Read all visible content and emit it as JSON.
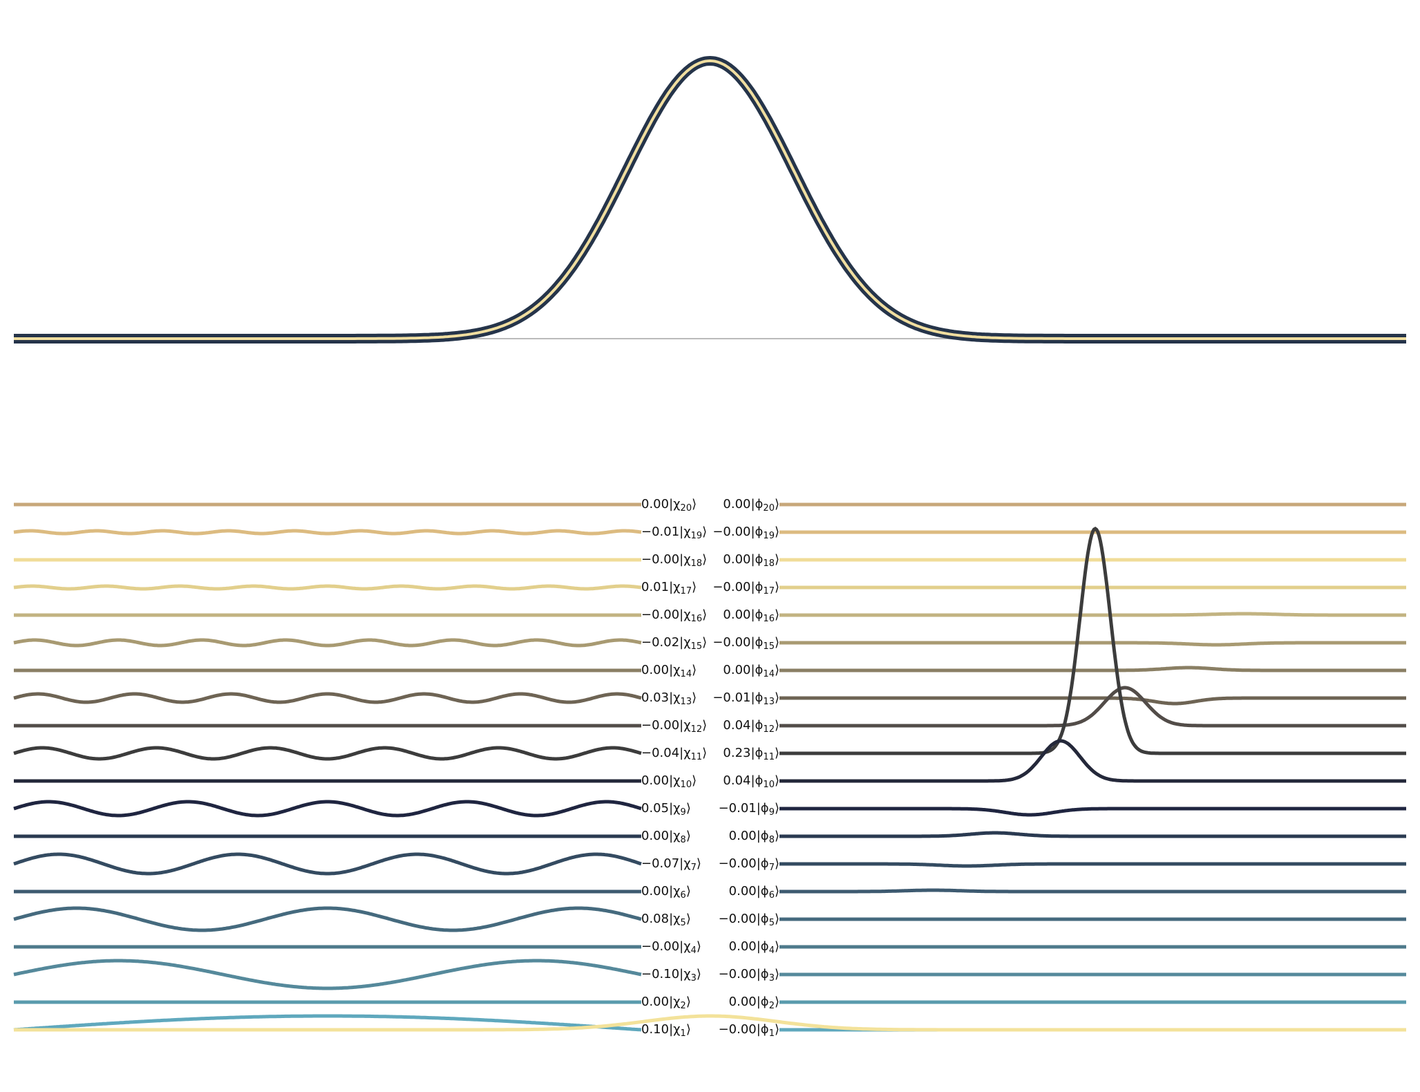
{
  "chart_data": [
    {
      "type": "line",
      "panel": "top",
      "xlim": [
        -1,
        1
      ],
      "ylim": [
        0,
        1
      ],
      "baseline": 0,
      "grid": false,
      "series": [
        {
          "shape": "gaussian",
          "center": 0,
          "sigma": 0.12,
          "peak": 1.0,
          "outline_color": "#25344a",
          "fill_color": "#f0dea0"
        }
      ]
    },
    {
      "type": "line",
      "panel": "bottom-left",
      "description_of_marks": "basis functions chi_n drawn as sinusoids with amplitude scaled by coefficient; the n=1 trace also carries the yellow initial state",
      "modes": [
        {
          "n": 1,
          "coef": "0.10",
          "color": "#5fa8bd",
          "amp": 0.1
        },
        {
          "n": 2,
          "coef": "0.00",
          "color": "#5a9bad",
          "amp": 0.0
        },
        {
          "n": 3,
          "coef": "−0.10",
          "color": "#55899b",
          "amp": -0.1
        },
        {
          "n": 4,
          "coef": "−0.00",
          "color": "#4e7a8b",
          "amp": 0.0
        },
        {
          "n": 5,
          "coef": "0.08",
          "color": "#456a7e",
          "amp": 0.08
        },
        {
          "n": 6,
          "coef": "0.00",
          "color": "#3d5a70",
          "amp": 0.0
        },
        {
          "n": 7,
          "coef": "−0.07",
          "color": "#344b61",
          "amp": -0.07
        },
        {
          "n": 8,
          "coef": "0.00",
          "color": "#2a3a51",
          "amp": 0.0
        },
        {
          "n": 9,
          "coef": "0.05",
          "color": "#1f2540",
          "amp": 0.05
        },
        {
          "n": 10,
          "coef": "0.00",
          "color": "#24283a",
          "amp": 0.0
        },
        {
          "n": 11,
          "coef": "−0.04",
          "color": "#3c3c3c",
          "amp": -0.04
        },
        {
          "n": 12,
          "coef": "−0.00",
          "color": "#524c48",
          "amp": 0.0
        },
        {
          "n": 13,
          "coef": "0.03",
          "color": "#6e6454",
          "amp": 0.03
        },
        {
          "n": 14,
          "coef": "0.00",
          "color": "#8a7f64",
          "amp": 0.0
        },
        {
          "n": 15,
          "coef": "−0.02",
          "color": "#a89a72",
          "amp": -0.02
        },
        {
          "n": 16,
          "coef": "−0.00",
          "color": "#c2b381",
          "amp": 0.0
        },
        {
          "n": 17,
          "coef": "0.01",
          "color": "#e2cf8c",
          "amp": 0.01
        },
        {
          "n": 18,
          "coef": "−0.00",
          "color": "#f0dc98",
          "amp": 0.0
        },
        {
          "n": 19,
          "coef": "−0.01",
          "color": "#dcbb80",
          "amp": -0.01
        },
        {
          "n": 20,
          "coef": "0.00",
          "color": "#c7a77a",
          "amp": 0.0
        }
      ]
    },
    {
      "type": "line",
      "panel": "bottom-right",
      "description_of_marks": "localized functions phi_n with coefficient labels",
      "modes": [
        {
          "n": 1,
          "coef": "−0.00",
          "color": "#5fa8bd"
        },
        {
          "n": 2,
          "coef": "0.00",
          "color": "#5a9bad"
        },
        {
          "n": 3,
          "coef": "−0.00",
          "color": "#55899b"
        },
        {
          "n": 4,
          "coef": "0.00",
          "color": "#4e7a8b"
        },
        {
          "n": 5,
          "coef": "−0.00",
          "color": "#456a7e"
        },
        {
          "n": 6,
          "coef": "0.00",
          "color": "#3d5a70"
        },
        {
          "n": 7,
          "coef": "−0.00",
          "color": "#344b61"
        },
        {
          "n": 8,
          "coef": "0.00",
          "color": "#2a3a51"
        },
        {
          "n": 9,
          "coef": "−0.01",
          "color": "#1f2540"
        },
        {
          "n": 10,
          "coef": "0.04",
          "color": "#24283a"
        },
        {
          "n": 11,
          "coef": "0.23",
          "color": "#3c3c3c"
        },
        {
          "n": 12,
          "coef": "0.04",
          "color": "#524c48"
        },
        {
          "n": 13,
          "coef": "−0.01",
          "color": "#6e6454"
        },
        {
          "n": 14,
          "coef": "0.00",
          "color": "#8a7f64"
        },
        {
          "n": 15,
          "coef": "−0.00",
          "color": "#a89a72"
        },
        {
          "n": 16,
          "coef": "0.00",
          "color": "#c2b381"
        },
        {
          "n": 17,
          "coef": "−0.00",
          "color": "#e2cf8c"
        },
        {
          "n": 18,
          "coef": "0.00",
          "color": "#f0dc98"
        },
        {
          "n": 19,
          "coef": "−0.00",
          "color": "#dcbb80"
        },
        {
          "n": 20,
          "coef": "0.00",
          "color": "#c7a77a"
        }
      ]
    }
  ],
  "symbols": {
    "chi": "χ",
    "phi": "ϕ"
  }
}
